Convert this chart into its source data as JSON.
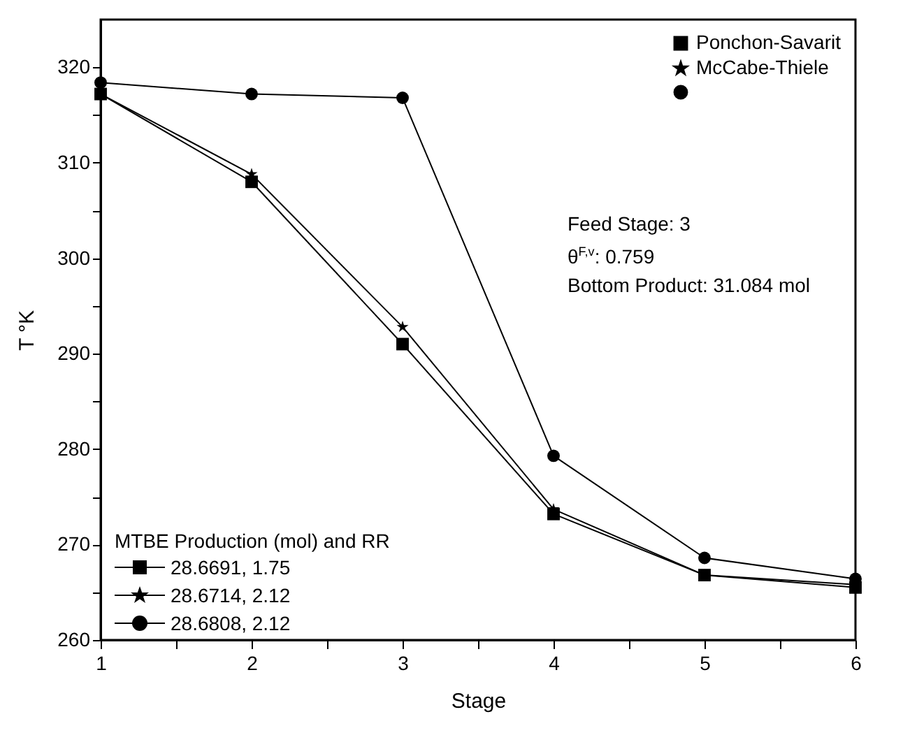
{
  "chart_data": {
    "type": "line",
    "xlabel": "Stage",
    "ylabel": "T °K",
    "x": [
      1,
      2,
      3,
      4,
      5,
      6
    ],
    "series": [
      {
        "name": "Ponchon-Savarit",
        "color": "#000000",
        "marker": "square",
        "values": [
          317.2,
          308.0,
          291.0,
          273.2,
          266.8,
          265.5
        ]
      },
      {
        "name": "McCabe-Thiele",
        "color": "#000000",
        "marker": "star",
        "values": [
          317.2,
          308.8,
          292.8,
          273.7,
          266.8,
          265.8
        ]
      },
      {
        "name": null,
        "color": "#000000",
        "marker": "circle",
        "values": [
          318.4,
          317.2,
          316.8,
          279.3,
          268.6,
          266.4
        ]
      }
    ],
    "xlim": [
      1,
      6
    ],
    "xticks": [
      1,
      {
        "value": 1.5,
        "label": null
      },
      2,
      {
        "value": 2.5,
        "label": null
      },
      3,
      {
        "value": 3.5,
        "label": null
      },
      4,
      {
        "value": 4.5,
        "label": null
      },
      5,
      {
        "value": 5.5,
        "label": null
      },
      6
    ],
    "ylim": [
      260,
      325
    ],
    "yticks": [
      260,
      {
        "value": 265,
        "label": null
      },
      270,
      {
        "value": 275,
        "label": null
      },
      280,
      {
        "value": 285,
        "label": null
      },
      290,
      {
        "value": 295,
        "label": null
      },
      300,
      {
        "value": 305,
        "label": null
      },
      310,
      {
        "value": 315,
        "label": null
      },
      320
    ],
    "legend": "top right",
    "grid": false,
    "line_style": "solid",
    "annotations": [
      "Feed Stage: 3",
      "θ$^{F,v}$: 0.759",
      "Bottom Product: 31.084 mol",
      "MTBE Production (mol) and RR",
      "28.6691, 1.75",
      "28.6714, 2.12",
      "28.6808, 2.12"
    ]
  }
}
